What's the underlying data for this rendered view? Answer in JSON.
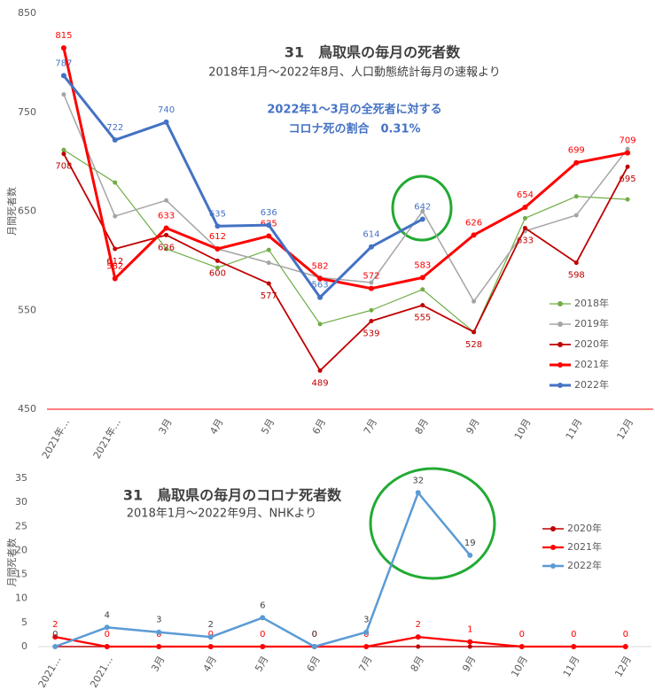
{
  "chart_data": [
    {
      "type": "line",
      "title": "31　鳥取県の毎月の死者数",
      "subtitle": "2018年1月～2022年8月、人口動態統計毎月の速報より",
      "annotations": [
        "2022年1～3月の全死者に対する",
        "コロナ死の割合　0.31%"
      ],
      "y_label": "月間死者数",
      "categories": [
        "2021年…",
        "2021年…",
        "3月",
        "4月",
        "5月",
        "6月",
        "7月",
        "8月",
        "9月",
        "10月",
        "11月",
        "12月"
      ],
      "ylim": [
        450,
        850
      ],
      "yticks": [
        450,
        550,
        650,
        750,
        850
      ],
      "grid": false,
      "series": [
        {
          "name": "2018年",
          "color": "#70ad47",
          "width": 1.2,
          "data_labels": false,
          "values": [
            712,
            679,
            612,
            593,
            611,
            536,
            550,
            571,
            528,
            643,
            665,
            662
          ]
        },
        {
          "name": "2019年",
          "color": "#a5a5a5",
          "width": 1.5,
          "data_labels": false,
          "values": [
            768,
            645,
            661,
            612,
            598,
            583,
            578,
            650,
            559,
            630,
            646,
            713
          ]
        },
        {
          "name": "2020年",
          "color": "#c00000",
          "width": 1.8,
          "data_labels": true,
          "values": [
            708,
            612,
            626,
            600,
            577,
            489,
            539,
            555,
            528,
            633,
            598,
            695
          ]
        },
        {
          "name": "2021年",
          "color": "#ff0000",
          "width": 3,
          "data_labels": true,
          "values": [
            815,
            582,
            633,
            612,
            625,
            582,
            572,
            583,
            626,
            654,
            699,
            709
          ]
        },
        {
          "name": "2022年",
          "color": "#4472c4",
          "width": 3,
          "data_labels": true,
          "values": [
            787,
            722,
            740,
            635,
            636,
            563,
            614,
            642,
            null,
            null,
            null,
            null
          ]
        }
      ]
    },
    {
      "type": "line",
      "title": "31　鳥取県の毎月のコロナ死者数",
      "subtitle": "2018年1月～2022年9月、NHKより",
      "y_label": "月間死者数",
      "categories": [
        "2021…",
        "2021…",
        "3月",
        "4月",
        "5月",
        "6月",
        "7月",
        "8月",
        "9月",
        "10月",
        "11月",
        "12月"
      ],
      "ylim": [
        0,
        35
      ],
      "yticks": [
        0,
        5,
        10,
        15,
        20,
        25,
        30,
        35
      ],
      "grid": false,
      "series": [
        {
          "name": "2020年",
          "color": "#c00000",
          "width": 1.5,
          "data_labels": false,
          "values": [
            0,
            0,
            0,
            0,
            0,
            0,
            0,
            0,
            0,
            0,
            0,
            0
          ]
        },
        {
          "name": "2021年",
          "color": "#ff0000",
          "width": 2.2,
          "data_labels": true,
          "values": [
            2,
            0,
            0,
            0,
            0,
            0,
            0,
            2,
            1,
            0,
            0,
            0
          ]
        },
        {
          "name": "2022年",
          "color": "#5b9bd5",
          "width": 2.5,
          "data_labels": true,
          "values": [
            0,
            4,
            3,
            2,
            6,
            0,
            3,
            32,
            19,
            null,
            null,
            null
          ]
        }
      ]
    }
  ]
}
